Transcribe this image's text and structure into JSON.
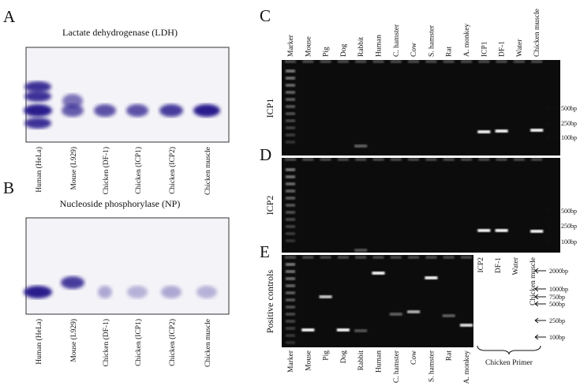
{
  "panel_a": {
    "label": "A",
    "title": "Lactate dehydrogenase (LDH)",
    "lanes": [
      "Human (HeLa)",
      "Mouse (L929)",
      "Chicken (DF-1)",
      "Chicken (ICP1)",
      "Chicken (ICP2)",
      "Chicken muscle"
    ]
  },
  "panel_b": {
    "label": "B",
    "title": "Nucleoside phosphorylase (NP)",
    "lanes": [
      "Human (HeLa)",
      "Mouse (L929)",
      "Chicken (DF-1)",
      "Chicken (ICP1)",
      "Chicken (ICP2)",
      "Chicken muscle"
    ]
  },
  "panel_c": {
    "label": "C",
    "row_label": "ICP1",
    "lanes": [
      "Marker",
      "Mouse",
      "Pig",
      "Dog",
      "Rabbit",
      "Human",
      "C. hamster",
      "Cow",
      "S. hamster",
      "Rat",
      "A. monkey",
      "ICP1",
      "DF-1",
      "Water",
      "Chicken muscle"
    ],
    "markers": [
      "500bp",
      "250bp",
      "100bp"
    ]
  },
  "panel_d": {
    "label": "D",
    "row_label": "ICP2",
    "markers": [
      "500bp",
      "250bp",
      "100bp"
    ]
  },
  "panel_e": {
    "label": "E",
    "row_label": "Positive controls",
    "lanes": [
      "Marker",
      "Mouse",
      "Pig",
      "Dog",
      "Rabbit",
      "Human",
      "C. hamster",
      "Cow",
      "S. hamster",
      "Rat",
      "A. monkey"
    ],
    "primer_lanes": [
      "ICP2",
      "DF-1",
      "Water",
      "Chicken muscle"
    ],
    "primer_label": "Chicken Primer",
    "markers": [
      "2000bp",
      "1000bp",
      "750bp",
      "500bp",
      "250bp",
      "100bp"
    ]
  }
}
